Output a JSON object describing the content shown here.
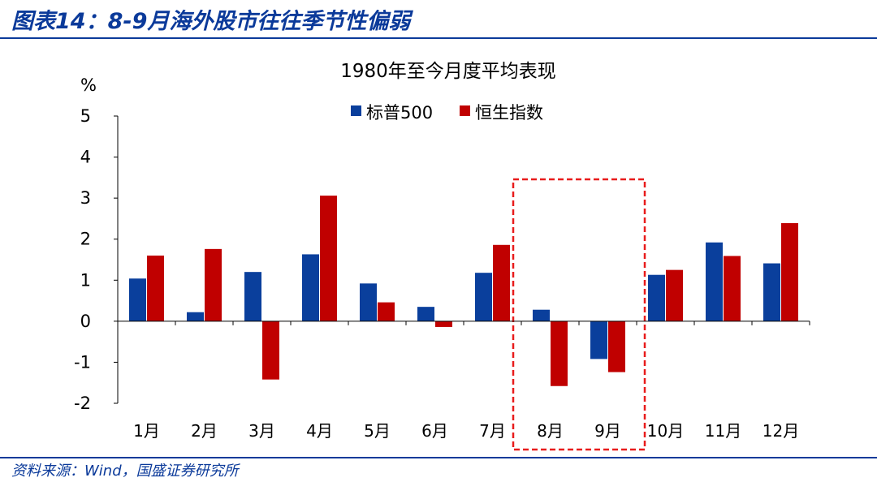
{
  "header": {
    "title": "图表14：8-9月海外股市往往季节性偏弱"
  },
  "footer": {
    "source": "资料来源：Wind，国盛证券研究所"
  },
  "colors": {
    "brand": "#0b3a9a",
    "series_1": "#0a3f9c",
    "series_2": "#c00000",
    "highlight": "#e81c1c"
  },
  "chart_data": {
    "type": "bar",
    "title": "1980年至今月度平均表现",
    "ylabel": "%",
    "xlabel": "",
    "ylim": [
      -2,
      5
    ],
    "yticks": [
      5,
      4,
      3,
      2,
      1,
      0,
      -1,
      -2
    ],
    "grid": false,
    "legend_position": "top",
    "categories": [
      "1月",
      "2月",
      "3月",
      "4月",
      "5月",
      "6月",
      "7月",
      "8月",
      "9月",
      "10月",
      "11月",
      "12月"
    ],
    "series": [
      {
        "name": "标普500",
        "values": [
          1.04,
          0.22,
          1.2,
          1.63,
          0.92,
          0.35,
          1.18,
          0.28,
          -0.92,
          1.13,
          1.92,
          1.41
        ]
      },
      {
        "name": "恒生指数",
        "values": [
          1.6,
          1.76,
          -1.42,
          3.06,
          0.46,
          -0.14,
          1.86,
          -1.58,
          -1.24,
          1.25,
          1.59,
          2.39
        ]
      }
    ],
    "highlight_categories": [
      "8月",
      "9月"
    ]
  }
}
